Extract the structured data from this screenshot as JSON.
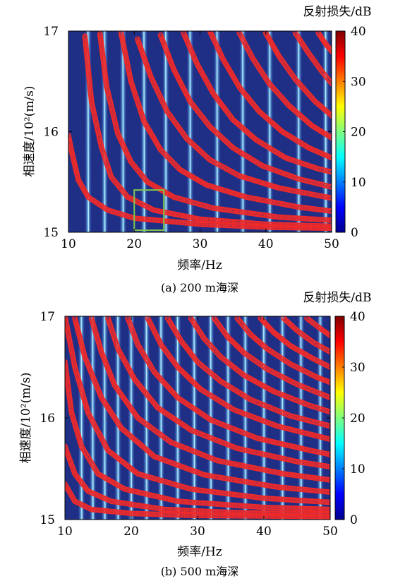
{
  "charts": [
    {
      "type": "heatmap",
      "caption": "(a) 200 m海深",
      "xlabel": "频率/Hz",
      "ylabel": "相速度/10²(m/s)",
      "xlim": [
        10,
        50
      ],
      "ylim": [
        15,
        17
      ],
      "xticks": [
        "10",
        "20",
        "30",
        "40",
        "50"
      ],
      "yticks": [
        "15",
        "16",
        "17"
      ],
      "colorbar": {
        "label": "反射损失/dB",
        "min": 0,
        "max": 40,
        "ticks": [
          "0",
          "10",
          "20",
          "30",
          "40"
        ]
      },
      "ridge_frequencies": [
        13.0,
        15.5,
        18.3,
        21.5,
        24.8,
        28.5,
        32.6,
        36.5,
        40.6,
        45.0,
        49.1
      ],
      "mode_curves": {
        "description_series": "red circle markers, phase velocity vs frequency, one series per normal mode",
        "series": [
          {
            "points": [
              [
                10.0,
                15.96
              ],
              [
                10.5,
                15.8
              ],
              [
                11.5,
                15.52
              ],
              [
                13.0,
                15.35
              ],
              [
                16.0,
                15.22
              ],
              [
                20.0,
                15.14
              ],
              [
                30.0,
                15.08
              ],
              [
                40.0,
                15.05
              ],
              [
                50.0,
                15.04
              ]
            ]
          },
          {
            "points": [
              [
                12.5,
                16.95
              ],
              [
                13.5,
                16.3
              ],
              [
                15.0,
                15.85
              ],
              [
                16.5,
                15.55
              ],
              [
                19.0,
                15.35
              ],
              [
                23.0,
                15.22
              ],
              [
                30.0,
                15.13
              ],
              [
                40.0,
                15.08
              ],
              [
                50.0,
                15.06
              ]
            ]
          },
          {
            "points": [
              [
                14.8,
                16.97
              ],
              [
                15.8,
                16.45
              ],
              [
                17.5,
                15.98
              ],
              [
                19.5,
                15.7
              ],
              [
                22.0,
                15.5
              ],
              [
                26.0,
                15.35
              ],
              [
                32.0,
                15.24
              ],
              [
                42.0,
                15.15
              ],
              [
                50.0,
                15.12
              ]
            ]
          },
          {
            "points": [
              [
                18.0,
                16.98
              ],
              [
                19.5,
                16.5
              ],
              [
                21.5,
                16.1
              ],
              [
                24.0,
                15.82
              ],
              [
                27.0,
                15.62
              ],
              [
                31.0,
                15.47
              ],
              [
                37.0,
                15.35
              ],
              [
                45.0,
                15.25
              ],
              [
                50.0,
                15.21
              ]
            ]
          },
          {
            "points": [
              [
                20.5,
                16.92
              ],
              [
                22.5,
                16.55
              ],
              [
                25.0,
                16.2
              ],
              [
                28.0,
                15.93
              ],
              [
                31.5,
                15.72
              ],
              [
                36.0,
                15.56
              ],
              [
                42.0,
                15.44
              ],
              [
                50.0,
                15.34
              ]
            ]
          },
          {
            "points": [
              [
                24.0,
                16.96
              ],
              [
                26.0,
                16.62
              ],
              [
                28.5,
                16.3
              ],
              [
                31.5,
                16.05
              ],
              [
                35.0,
                15.84
              ],
              [
                39.5,
                15.66
              ],
              [
                45.0,
                15.53
              ],
              [
                50.0,
                15.45
              ]
            ]
          },
          {
            "points": [
              [
                27.5,
                16.98
              ],
              [
                29.5,
                16.68
              ],
              [
                32.0,
                16.38
              ],
              [
                35.0,
                16.12
              ],
              [
                38.5,
                15.92
              ],
              [
                43.0,
                15.74
              ],
              [
                48.0,
                15.63
              ],
              [
                50.0,
                15.6
              ]
            ]
          },
          {
            "points": [
              [
                31.5,
                17.0
              ],
              [
                33.5,
                16.72
              ],
              [
                36.0,
                16.44
              ],
              [
                39.0,
                16.2
              ],
              [
                42.5,
                16.0
              ],
              [
                46.5,
                15.84
              ],
              [
                50.0,
                15.74
              ]
            ]
          },
          {
            "points": [
              [
                36.0,
                16.98
              ],
              [
                38.0,
                16.73
              ],
              [
                40.5,
                16.48
              ],
              [
                43.5,
                16.26
              ],
              [
                47.0,
                16.06
              ],
              [
                50.0,
                15.94
              ]
            ]
          },
          {
            "points": [
              [
                40.0,
                16.98
              ],
              [
                42.0,
                16.75
              ],
              [
                44.5,
                16.52
              ],
              [
                47.5,
                16.3
              ],
              [
                50.0,
                16.16
              ]
            ]
          },
          {
            "points": [
              [
                44.5,
                16.98
              ],
              [
                46.5,
                16.78
              ],
              [
                48.5,
                16.6
              ],
              [
                50.0,
                16.48
              ]
            ]
          },
          {
            "points": [
              [
                48.0,
                16.98
              ],
              [
                49.0,
                16.88
              ],
              [
                50.0,
                16.8
              ]
            ]
          }
        ]
      },
      "highlight_box": {
        "x": [
          20.0,
          24.5
        ],
        "y": [
          15.02,
          15.42
        ],
        "color": "#7ec850"
      }
    },
    {
      "type": "heatmap",
      "caption": "(b) 500 m海深",
      "xlabel": "频率/Hz",
      "ylabel": "相速度/10²(m/s)",
      "xlim": [
        10,
        50
      ],
      "ylim": [
        15,
        17
      ],
      "xticks": [
        "10",
        "20",
        "30",
        "40",
        "50"
      ],
      "yticks": [
        "15",
        "16",
        "17"
      ],
      "colorbar": {
        "label": "反射损失/dB",
        "min": 0,
        "max": 40,
        "ticks": [
          "0",
          "10",
          "20",
          "30",
          "40"
        ]
      },
      "ridge_frequencies": [
        12.5,
        14.2,
        16.0,
        18.0,
        20.0,
        22.3,
        24.5,
        27.0,
        29.5,
        32.0,
        34.6,
        37.2,
        40.0,
        42.8,
        45.6,
        48.5
      ],
      "mode_curves": {
        "series": [
          {
            "points": [
              [
                10.0,
                15.35
              ],
              [
                11.5,
                15.18
              ],
              [
                14.0,
                15.1
              ],
              [
                20.0,
                15.06
              ],
              [
                30.0,
                15.04
              ],
              [
                50.0,
                15.03
              ]
            ]
          },
          {
            "points": [
              [
                10.0,
                15.72
              ],
              [
                11.5,
                15.45
              ],
              [
                13.5,
                15.28
              ],
              [
                17.0,
                15.18
              ],
              [
                25.0,
                15.1
              ],
              [
                35.0,
                15.07
              ],
              [
                50.0,
                15.05
              ]
            ]
          },
          {
            "points": [
              [
                10.0,
                16.55
              ],
              [
                11.0,
                16.05
              ],
              [
                12.5,
                15.72
              ],
              [
                15.0,
                15.45
              ],
              [
                19.0,
                15.3
              ],
              [
                27.0,
                15.18
              ],
              [
                40.0,
                15.12
              ],
              [
                50.0,
                15.1
              ]
            ]
          },
          {
            "points": [
              [
                10.0,
                17.0
              ],
              [
                11.5,
                16.5
              ],
              [
                13.5,
                16.05
              ],
              [
                16.5,
                15.68
              ],
              [
                21.0,
                15.45
              ],
              [
                29.0,
                15.3
              ],
              [
                40.0,
                15.21
              ],
              [
                50.0,
                15.17
              ]
            ]
          },
          {
            "points": [
              [
                11.5,
                16.98
              ],
              [
                13.0,
                16.6
              ],
              [
                15.5,
                16.2
              ],
              [
                18.5,
                15.9
              ],
              [
                23.5,
                15.62
              ],
              [
                31.0,
                15.44
              ],
              [
                42.0,
                15.32
              ],
              [
                50.0,
                15.27
              ]
            ]
          },
          {
            "points": [
              [
                14.0,
                16.98
              ],
              [
                15.5,
                16.65
              ],
              [
                17.5,
                16.32
              ],
              [
                21.0,
                16.0
              ],
              [
                26.0,
                15.76
              ],
              [
                33.0,
                15.58
              ],
              [
                43.0,
                15.45
              ],
              [
                50.0,
                15.39
              ]
            ]
          },
          {
            "points": [
              [
                16.5,
                16.98
              ],
              [
                18.0,
                16.68
              ],
              [
                20.5,
                16.38
              ],
              [
                24.0,
                16.1
              ],
              [
                29.0,
                15.88
              ],
              [
                36.0,
                15.7
              ],
              [
                45.0,
                15.57
              ],
              [
                50.0,
                15.52
              ]
            ]
          },
          {
            "points": [
              [
                19.5,
                16.98
              ],
              [
                21.0,
                16.72
              ],
              [
                23.5,
                16.45
              ],
              [
                27.0,
                16.2
              ],
              [
                32.0,
                15.98
              ],
              [
                39.0,
                15.8
              ],
              [
                47.0,
                15.68
              ],
              [
                50.0,
                15.64
              ]
            ]
          },
          {
            "points": [
              [
                22.5,
                16.98
              ],
              [
                24.5,
                16.72
              ],
              [
                27.0,
                16.5
              ],
              [
                30.5,
                16.28
              ],
              [
                35.5,
                16.08
              ],
              [
                42.0,
                15.92
              ],
              [
                50.0,
                15.79
              ]
            ]
          },
          {
            "points": [
              [
                25.5,
                16.98
              ],
              [
                27.5,
                16.76
              ],
              [
                30.0,
                16.55
              ],
              [
                33.5,
                16.36
              ],
              [
                38.0,
                16.18
              ],
              [
                44.0,
                16.02
              ],
              [
                50.0,
                15.92
              ]
            ]
          },
          {
            "points": [
              [
                29.0,
                16.98
              ],
              [
                31.0,
                16.78
              ],
              [
                33.5,
                16.6
              ],
              [
                37.0,
                16.42
              ],
              [
                41.5,
                16.26
              ],
              [
                47.0,
                16.12
              ],
              [
                50.0,
                16.06
              ]
            ]
          },
          {
            "points": [
              [
                32.5,
                16.98
              ],
              [
                34.5,
                16.8
              ],
              [
                37.0,
                16.64
              ],
              [
                40.5,
                16.48
              ],
              [
                45.0,
                16.33
              ],
              [
                50.0,
                16.2
              ]
            ]
          },
          {
            "points": [
              [
                36.0,
                16.98
              ],
              [
                38.0,
                16.82
              ],
              [
                40.5,
                16.68
              ],
              [
                44.0,
                16.53
              ],
              [
                48.0,
                16.4
              ],
              [
                50.0,
                16.35
              ]
            ]
          },
          {
            "points": [
              [
                39.5,
                16.98
              ],
              [
                41.5,
                16.84
              ],
              [
                44.0,
                16.71
              ],
              [
                47.5,
                16.58
              ],
              [
                50.0,
                16.5
              ]
            ]
          },
          {
            "points": [
              [
                43.0,
                16.98
              ],
              [
                45.0,
                16.86
              ],
              [
                47.5,
                16.74
              ],
              [
                50.0,
                16.65
              ]
            ]
          },
          {
            "points": [
              [
                46.5,
                16.98
              ],
              [
                48.5,
                16.88
              ],
              [
                50.0,
                16.81
              ]
            ]
          }
        ]
      }
    }
  ],
  "colors": {
    "field_base": "#1f2f86",
    "marker_red": "#ee2a2a",
    "highlight_green": "#7ec850"
  }
}
